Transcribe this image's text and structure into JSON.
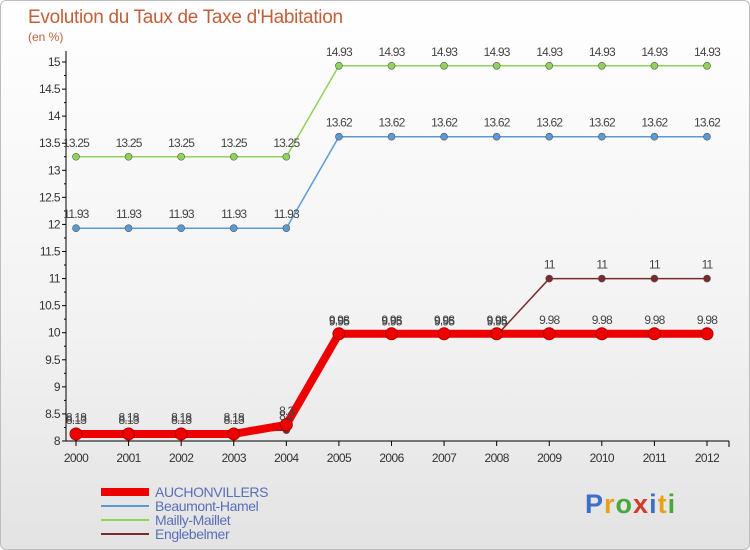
{
  "header": {
    "title": "Evolution du Taux de Taxe d'Habitation",
    "subtitle": "(en %)"
  },
  "logo": {
    "text": "Proxiti",
    "colors": [
      "#3b6fc9",
      "#e8a21a",
      "#4aa83a",
      "#d23b2a",
      "#3b6fc9",
      "#e8a21a",
      "#4aa83a"
    ]
  },
  "chart_data": {
    "type": "line",
    "x": [
      "2000",
      "2001",
      "2002",
      "2003",
      "2004",
      "2005",
      "2006",
      "2007",
      "2008",
      "2009",
      "2010",
      "2011",
      "2012"
    ],
    "ylim": [
      8,
      15
    ],
    "yticks": [
      "8",
      "8.5",
      "9",
      "9.5",
      "10",
      "10.5",
      "11",
      "11.5",
      "12",
      "12.5",
      "13",
      "13.5",
      "14",
      "14.5",
      "15"
    ],
    "grid": false,
    "legend_position": "bottom-left",
    "series": [
      {
        "name": "AUCHONVILLERS",
        "color": "#ee0000",
        "values": [
          8.13,
          8.13,
          8.13,
          8.13,
          8.3,
          9.98,
          9.98,
          9.98,
          9.98,
          9.98,
          9.98,
          9.98,
          9.98
        ],
        "labels": [
          "8.13",
          "8.13",
          "8.13",
          "8.13",
          "8.3",
          "9.98",
          "9.98",
          "9.98",
          "9.98",
          "9.98",
          "9.98",
          "9.98",
          "9.98"
        ]
      },
      {
        "name": "Beaumont-Hamel",
        "color": "#5b9bd5",
        "values": [
          11.93,
          11.93,
          11.93,
          11.93,
          11.93,
          13.62,
          13.62,
          13.62,
          13.62,
          13.62,
          13.62,
          13.62,
          13.62
        ],
        "labels": [
          "11.93",
          "11.93",
          "11.93",
          "11.93",
          "11.93",
          "13.62",
          "13.62",
          "13.62",
          "13.62",
          "13.62",
          "13.62",
          "13.62",
          "13.62"
        ]
      },
      {
        "name": "Mailly-Maillet",
        "color": "#8fd35a",
        "values": [
          13.25,
          13.25,
          13.25,
          13.25,
          13.25,
          14.93,
          14.93,
          14.93,
          14.93,
          14.93,
          14.93,
          14.93,
          14.93
        ],
        "labels": [
          "13.25",
          "13.25",
          "13.25",
          "13.25",
          "13.25",
          "14.93",
          "14.93",
          "14.93",
          "14.93",
          "14.93",
          "14.93",
          "14.93",
          "14.93"
        ]
      },
      {
        "name": "Englebelmer",
        "color": "#7a2a2a",
        "values": [
          8.18,
          8.18,
          8.18,
          8.18,
          8.2,
          9.95,
          9.95,
          9.95,
          9.95,
          11,
          11,
          11,
          11
        ],
        "labels": [
          "8.18",
          "8.18",
          "8.18",
          "8.18",
          "8.2",
          "9.95",
          "9.95",
          "9.95",
          "9.95",
          "11",
          "11",
          "11",
          "11"
        ]
      }
    ]
  }
}
